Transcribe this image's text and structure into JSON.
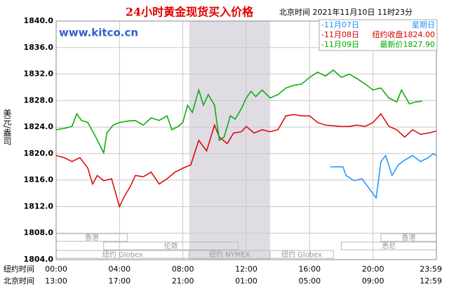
{
  "chart_data": {
    "type": "line",
    "title": "24小时黄金现货买入价格",
    "timestamp": "北京时间 2021年11月10日 11时23分",
    "watermark": "www.kitco.cn",
    "ylabel": "美元/盎司",
    "xlabel": "纽约时间",
    "x2label": "北京时间",
    "xlim": [
      0,
      24
    ],
    "ylim": [
      1804,
      1840
    ],
    "yticks": [
      {
        "value": 1804,
        "label": "1804.0"
      },
      {
        "value": 1808,
        "label": "1808.0"
      },
      {
        "value": 1812,
        "label": "1812.0"
      },
      {
        "value": 1816,
        "label": "1816.0"
      },
      {
        "value": 1820,
        "label": "1820.0"
      },
      {
        "value": 1824,
        "label": "1824.0"
      },
      {
        "value": 1828,
        "label": "1828.0"
      },
      {
        "value": 1832,
        "label": "1832.0"
      },
      {
        "value": 1836,
        "label": "1836.0"
      },
      {
        "value": 1840,
        "label": "1840.0"
      }
    ],
    "xticks": [
      {
        "value": 0,
        "label": "00:00"
      },
      {
        "value": 4,
        "label": "04:00"
      },
      {
        "value": 8,
        "label": "08:00"
      },
      {
        "value": 12,
        "label": "12:00"
      },
      {
        "value": 16,
        "label": "16:00"
      },
      {
        "value": 20,
        "label": "20:00"
      },
      {
        "value": 23.983,
        "label": "23:59"
      }
    ],
    "x2ticks": [
      {
        "value": 0,
        "label": "13:00"
      },
      {
        "value": 4,
        "label": "17:00"
      },
      {
        "value": 8,
        "label": "21:00"
      },
      {
        "value": 12,
        "label": "01:00"
      },
      {
        "value": 16,
        "label": "05:00"
      },
      {
        "value": 20,
        "label": "09:00"
      },
      {
        "value": 23.983,
        "label": "12:59"
      }
    ],
    "grid": true,
    "sessions": [
      {
        "name": "香港",
        "start": 0,
        "end": 4.5,
        "row": 0
      },
      {
        "name": "香港",
        "start": 20.5,
        "end": 24,
        "row": 0
      },
      {
        "name": "伦敦",
        "start": 3,
        "end": 11.5,
        "row": 1
      },
      {
        "name": "悉尼",
        "start": 18,
        "end": 24,
        "row": 1
      },
      {
        "name": "纽约 Globex",
        "start": 0,
        "end": 8.4,
        "row": 2
      },
      {
        "name": "纽约 NYMEX",
        "start": 8.4,
        "end": 13.5,
        "row": 2,
        "shade": true
      },
      {
        "name": "纽约 Globex",
        "start": 13.5,
        "end": 17.5,
        "row": 2
      }
    ],
    "series": [
      {
        "name": "-11月07日",
        "note": "星期日",
        "color": "#1e90ff",
        "x": [
          17.3,
          18.1,
          18.3,
          18.8,
          19.3,
          19.8,
          20.2,
          20.5,
          20.8,
          21.2,
          21.6,
          22,
          22.5,
          23,
          23.5,
          23.8,
          24
        ],
        "values": [
          1818.0,
          1818.0,
          1816.7,
          1815.9,
          1816.2,
          1814.6,
          1813.3,
          1818.8,
          1819.7,
          1816.7,
          1818.3,
          1819.0,
          1819.7,
          1818.8,
          1819.4,
          1820.0,
          1819.7
        ]
      },
      {
        "name": "-11月08日",
        "note": "纽约收盘1824.00",
        "color": "#dd0000",
        "x": [
          0,
          0.5,
          1,
          1.5,
          2,
          2.3,
          2.6,
          3,
          3.5,
          4,
          4.3,
          4.7,
          5,
          5.5,
          6,
          6.5,
          7,
          7.5,
          8,
          8.5,
          9,
          9.5,
          10,
          10.3,
          10.8,
          11.2,
          11.7,
          12,
          12.5,
          13,
          13.5,
          14,
          14.5,
          15,
          15.5,
          16,
          16.5,
          17,
          18,
          18.5,
          19,
          19.5,
          20,
          20.5,
          21,
          21.5,
          22,
          22.5,
          23,
          23.5,
          24
        ],
        "values": [
          1819.7,
          1819.4,
          1818.8,
          1819.4,
          1817.8,
          1815.4,
          1816.7,
          1815.9,
          1816.2,
          1812.0,
          1813.5,
          1815.1,
          1816.7,
          1816.5,
          1817.2,
          1815.4,
          1816.2,
          1817.2,
          1817.8,
          1818.3,
          1822.0,
          1820.4,
          1824.3,
          1822.5,
          1821.5,
          1823.1,
          1823.3,
          1824.1,
          1823.1,
          1823.6,
          1823.3,
          1823.6,
          1825.7,
          1825.9,
          1825.7,
          1825.7,
          1824.7,
          1824.3,
          1824.1,
          1824.1,
          1824.3,
          1824.1,
          1824.7,
          1826.0,
          1824.1,
          1823.6,
          1822.5,
          1823.6,
          1822.9,
          1823.1,
          1823.4
        ]
      },
      {
        "name": "-11月09日",
        "note": "最新价1827.90",
        "color": "#00aa00",
        "x": [
          0,
          0.5,
          1,
          1.3,
          1.6,
          2,
          2.5,
          3,
          3.2,
          3.6,
          4,
          4.5,
          5,
          5.5,
          6,
          6.5,
          7,
          7.3,
          7.7,
          8,
          8.3,
          8.6,
          9,
          9.3,
          9.6,
          10,
          10.3,
          10.6,
          11,
          11.3,
          11.7,
          12,
          12.3,
          12.6,
          13,
          13.5,
          14,
          14.5,
          15,
          15.5,
          16,
          16.5,
          17,
          17.5,
          18,
          18.5,
          19,
          19.5,
          20,
          20.5,
          21,
          21.5,
          21.8,
          22.3,
          22.7,
          23.1
        ],
        "values": [
          1823.6,
          1823.8,
          1824.1,
          1826.0,
          1825.0,
          1824.7,
          1822.5,
          1820.1,
          1823.1,
          1824.3,
          1824.7,
          1824.9,
          1825.0,
          1824.3,
          1825.4,
          1825.0,
          1825.7,
          1823.6,
          1824.1,
          1824.7,
          1827.3,
          1826.2,
          1829.6,
          1827.3,
          1828.9,
          1827.3,
          1822.0,
          1822.5,
          1825.7,
          1825.2,
          1826.8,
          1828.4,
          1829.4,
          1828.6,
          1829.6,
          1828.4,
          1828.9,
          1829.9,
          1830.3,
          1830.5,
          1831.5,
          1832.3,
          1831.7,
          1832.6,
          1831.5,
          1832.0,
          1831.3,
          1830.5,
          1829.6,
          1829.9,
          1828.4,
          1827.8,
          1829.6,
          1827.5,
          1827.8,
          1827.9
        ]
      }
    ]
  }
}
